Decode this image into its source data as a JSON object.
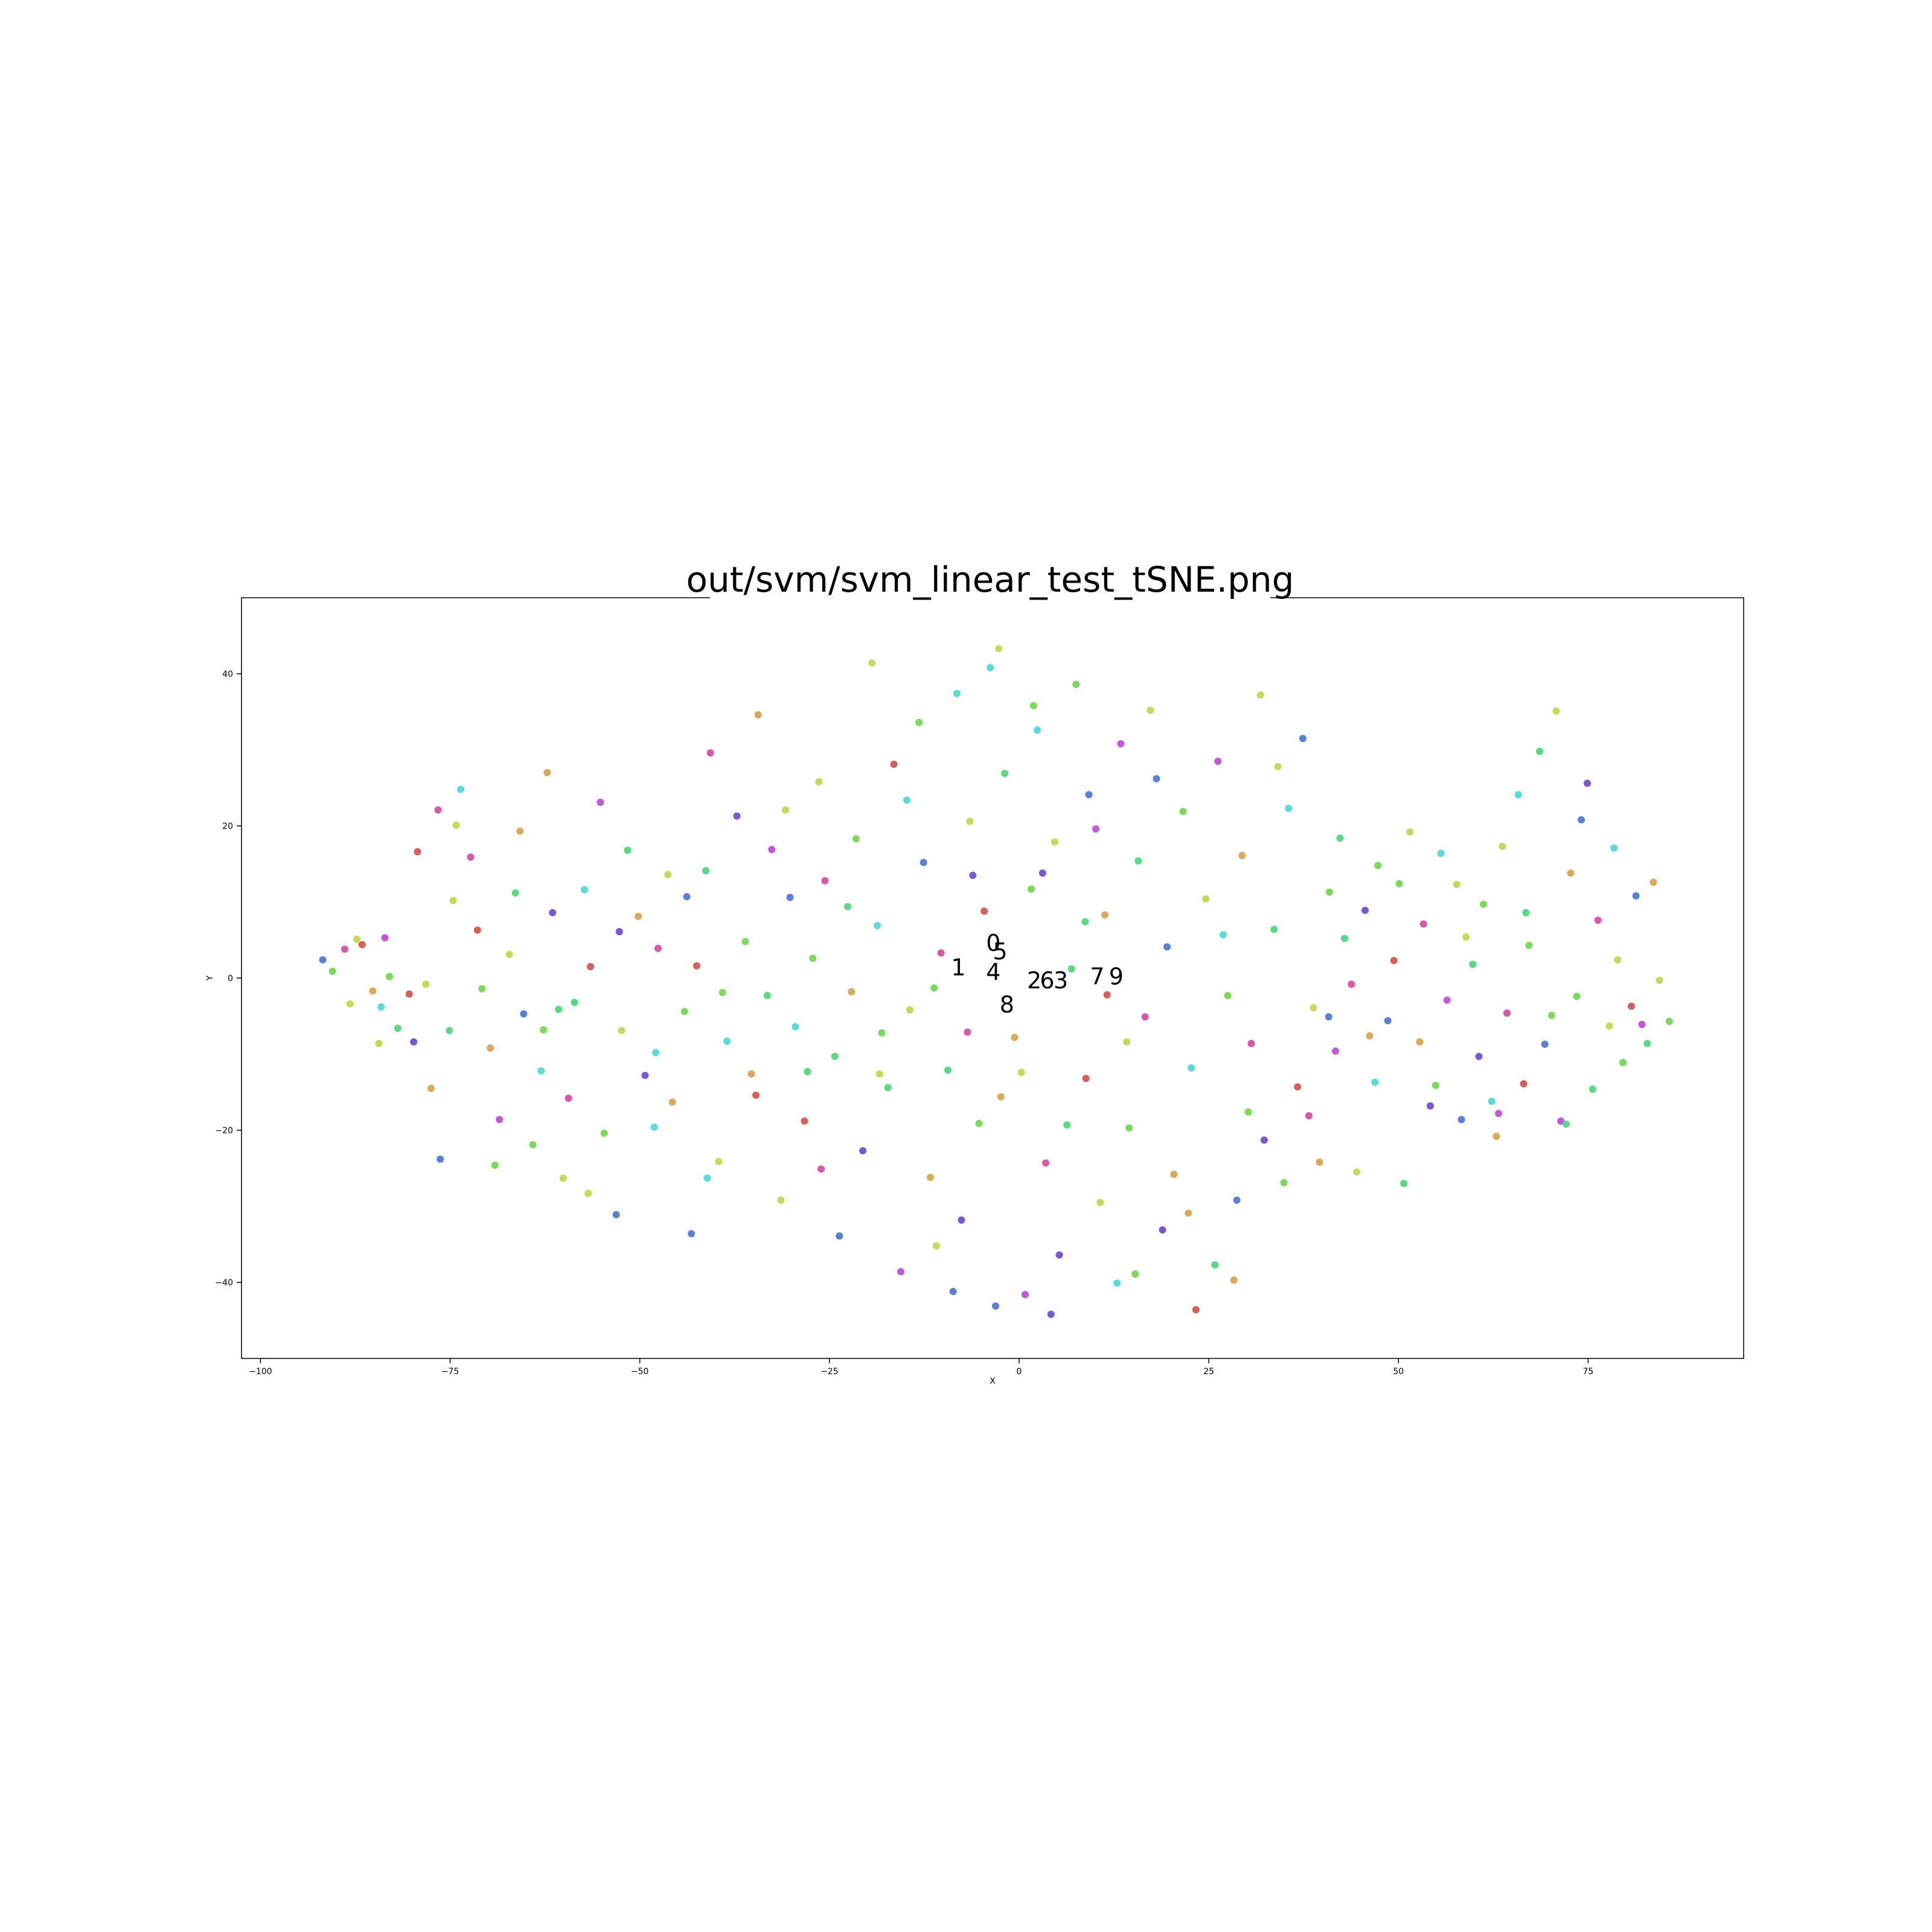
{
  "chart_data": {
    "type": "scatter",
    "title": "out/svm/svm_linear_test_tSNE.png",
    "xlabel": "X",
    "ylabel": "Y",
    "xlim": [
      -102.5,
      95.5
    ],
    "ylim": [
      -50,
      50
    ],
    "xticks": [
      -100,
      -75,
      -50,
      -25,
      0,
      25,
      50,
      75
    ],
    "xtick_labels": [
      "−100",
      "−75",
      "−50",
      "−25",
      "0",
      "25",
      "50",
      "75"
    ],
    "yticks": [
      -40,
      -20,
      0,
      20,
      40
    ],
    "ytick_labels": [
      "−40",
      "−20",
      "0",
      "20",
      "40"
    ],
    "grid": false,
    "legend": "none",
    "class_colors": [
      "#db5f57",
      "#dba957",
      "#c3db57",
      "#79db57",
      "#57db80",
      "#57dbdb",
      "#5780db",
      "#7957db",
      "#c357db",
      "#db57a9"
    ],
    "cluster_labels": [
      {
        "text": "0",
        "x": -3.4,
        "y": 4.4
      },
      {
        "text": "5",
        "x": -2.5,
        "y": 3.3
      },
      {
        "text": "1",
        "x": -8.0,
        "y": 1.2
      },
      {
        "text": "4",
        "x": -3.4,
        "y": 0.6
      },
      {
        "text": "2",
        "x": 2.0,
        "y": -0.5
      },
      {
        "text": "6",
        "x": 3.7,
        "y": -0.5
      },
      {
        "text": "3",
        "x": 5.5,
        "y": -0.5
      },
      {
        "text": "7",
        "x": 10.3,
        "y": 0.0
      },
      {
        "text": "9",
        "x": 12.8,
        "y": 0.0
      },
      {
        "text": "8",
        "x": -1.6,
        "y": -3.7
      }
    ],
    "points": [
      [
        -91.8,
        2.4,
        6
      ],
      [
        -90.5,
        0.9,
        3
      ],
      [
        -88.9,
        3.8,
        9
      ],
      [
        -87.3,
        5.1,
        2
      ],
      [
        -86.6,
        4.4,
        0
      ],
      [
        -85.2,
        -1.7,
        1
      ],
      [
        -84.1,
        -3.8,
        5
      ],
      [
        -83.0,
        0.2,
        3
      ],
      [
        -81.9,
        -6.6,
        4
      ],
      [
        -80.4,
        -2.1,
        0
      ],
      [
        -79.8,
        -8.4,
        7
      ],
      [
        -78.2,
        -0.8,
        2
      ],
      [
        -77.5,
        -14.5,
        1
      ],
      [
        -76.3,
        -23.8,
        6
      ],
      [
        -75.1,
        -6.9,
        4
      ],
      [
        -74.2,
        20.1,
        2
      ],
      [
        -73.6,
        24.8,
        5
      ],
      [
        -72.3,
        15.9,
        9
      ],
      [
        -71.4,
        6.3,
        0
      ],
      [
        -70.8,
        -1.4,
        3
      ],
      [
        -69.7,
        -9.2,
        1
      ],
      [
        -68.5,
        -18.6,
        8
      ],
      [
        -67.2,
        3.1,
        2
      ],
      [
        -66.4,
        11.2,
        4
      ],
      [
        -65.3,
        -4.7,
        6
      ],
      [
        -64.1,
        -21.9,
        3
      ],
      [
        -63.0,
        -12.2,
        5
      ],
      [
        -62.2,
        27.0,
        1
      ],
      [
        -61.5,
        8.6,
        7
      ],
      [
        -60.1,
        -26.3,
        2
      ],
      [
        -59.4,
        -15.8,
        9
      ],
      [
        -58.6,
        -3.2,
        4
      ],
      [
        -57.3,
        11.6,
        5
      ],
      [
        -56.5,
        1.5,
        0
      ],
      [
        -55.2,
        23.1,
        8
      ],
      [
        -54.7,
        -20.4,
        3
      ],
      [
        -53.1,
        -31.1,
        6
      ],
      [
        -52.4,
        -6.9,
        2
      ],
      [
        -51.6,
        16.8,
        4
      ],
      [
        -50.2,
        8.1,
        1
      ],
      [
        -49.3,
        -12.8,
        7
      ],
      [
        -48.1,
        -19.6,
        5
      ],
      [
        -47.6,
        3.9,
        9
      ],
      [
        -46.3,
        13.6,
        2
      ],
      [
        -45.7,
        -16.3,
        1
      ],
      [
        -44.1,
        -4.4,
        3
      ],
      [
        -43.2,
        -33.6,
        6
      ],
      [
        -42.5,
        1.6,
        0
      ],
      [
        -41.3,
        14.1,
        4
      ],
      [
        -40.7,
        29.6,
        9
      ],
      [
        -39.6,
        -24.1,
        2
      ],
      [
        -38.5,
        -8.3,
        5
      ],
      [
        -37.2,
        21.3,
        7
      ],
      [
        -36.1,
        4.8,
        3
      ],
      [
        -35.3,
        -12.6,
        1
      ],
      [
        -34.4,
        34.6,
        1
      ],
      [
        -33.2,
        -2.3,
        4
      ],
      [
        -32.6,
        16.9,
        8
      ],
      [
        -31.4,
        -29.2,
        2
      ],
      [
        -30.2,
        10.6,
        6
      ],
      [
        -29.5,
        -6.4,
        5
      ],
      [
        -28.3,
        -18.8,
        0
      ],
      [
        -27.2,
        2.6,
        3
      ],
      [
        -26.4,
        25.8,
        2
      ],
      [
        -25.6,
        12.8,
        9
      ],
      [
        -24.3,
        -10.3,
        4
      ],
      [
        -23.7,
        -33.9,
        6
      ],
      [
        -22.1,
        -1.8,
        1
      ],
      [
        -21.5,
        18.3,
        3
      ],
      [
        -20.6,
        -22.7,
        7
      ],
      [
        -19.4,
        41.4,
        2
      ],
      [
        -18.7,
        6.9,
        5
      ],
      [
        -17.3,
        -14.4,
        4
      ],
      [
        -16.5,
        28.1,
        0
      ],
      [
        -15.6,
        -38.6,
        8
      ],
      [
        -14.4,
        -4.2,
        2
      ],
      [
        -13.2,
        33.6,
        3
      ],
      [
        -12.6,
        15.2,
        6
      ],
      [
        -11.7,
        -26.2,
        1
      ],
      [
        -10.3,
        3.3,
        9
      ],
      [
        -9.4,
        -12.1,
        4
      ],
      [
        -8.2,
        37.4,
        5
      ],
      [
        -7.6,
        -31.8,
        7
      ],
      [
        -6.5,
        20.6,
        2
      ],
      [
        -5.3,
        -19.1,
        3
      ],
      [
        -4.6,
        8.8,
        0
      ],
      [
        -3.1,
        -43.1,
        6
      ],
      [
        -2.7,
        43.3,
        2
      ],
      [
        -1.9,
        26.9,
        4
      ],
      [
        -0.6,
        -7.8,
        1
      ],
      [
        0.8,
        -41.6,
        8
      ],
      [
        1.6,
        11.7,
        3
      ],
      [
        2.4,
        32.6,
        5
      ],
      [
        3.5,
        -24.3,
        9
      ],
      [
        4.7,
        17.9,
        2
      ],
      [
        5.3,
        -36.4,
        7
      ],
      [
        6.9,
        1.2,
        4
      ],
      [
        7.5,
        38.6,
        3
      ],
      [
        8.8,
        -13.2,
        0
      ],
      [
        9.2,
        24.1,
        6
      ],
      [
        10.7,
        -29.5,
        2
      ],
      [
        11.3,
        8.3,
        1
      ],
      [
        12.9,
        -40.1,
        5
      ],
      [
        13.4,
        30.8,
        8
      ],
      [
        14.5,
        -19.7,
        3
      ],
      [
        15.7,
        15.4,
        4
      ],
      [
        16.6,
        -5.1,
        9
      ],
      [
        17.3,
        35.2,
        2
      ],
      [
        18.9,
        -33.1,
        7
      ],
      [
        19.5,
        4.1,
        6
      ],
      [
        20.4,
        -25.8,
        1
      ],
      [
        21.6,
        21.9,
        3
      ],
      [
        22.7,
        -11.8,
        5
      ],
      [
        23.3,
        -43.6,
        0
      ],
      [
        24.6,
        10.4,
        2
      ],
      [
        25.8,
        -37.7,
        4
      ],
      [
        26.2,
        28.5,
        8
      ],
      [
        27.5,
        -2.3,
        3
      ],
      [
        28.7,
        -29.2,
        6
      ],
      [
        29.4,
        16.1,
        1
      ],
      [
        30.6,
        -8.6,
        9
      ],
      [
        31.8,
        37.2,
        2
      ],
      [
        32.3,
        -21.3,
        7
      ],
      [
        33.6,
        6.4,
        4
      ],
      [
        34.9,
        -26.9,
        3
      ],
      [
        35.5,
        22.3,
        5
      ],
      [
        36.7,
        -14.3,
        0
      ],
      [
        37.4,
        31.5,
        6
      ],
      [
        38.8,
        -3.9,
        2
      ],
      [
        39.6,
        -24.2,
        1
      ],
      [
        40.9,
        11.3,
        3
      ],
      [
        41.7,
        -9.6,
        8
      ],
      [
        42.3,
        18.4,
        4
      ],
      [
        43.8,
        -0.8,
        9
      ],
      [
        44.5,
        -25.5,
        2
      ],
      [
        45.6,
        8.9,
        7
      ],
      [
        46.9,
        -13.7,
        5
      ],
      [
        47.3,
        14.8,
        3
      ],
      [
        48.6,
        -5.6,
        6
      ],
      [
        49.4,
        2.3,
        0
      ],
      [
        50.7,
        -27.0,
        4
      ],
      [
        51.5,
        19.2,
        2
      ],
      [
        52.8,
        -8.4,
        1
      ],
      [
        53.3,
        7.1,
        9
      ],
      [
        54.9,
        -14.1,
        3
      ],
      [
        55.6,
        16.4,
        5
      ],
      [
        56.4,
        -2.9,
        8
      ],
      [
        57.7,
        12.3,
        2
      ],
      [
        58.3,
        -18.6,
        6
      ],
      [
        59.8,
        1.8,
        4
      ],
      [
        60.6,
        -10.3,
        7
      ],
      [
        61.2,
        9.7,
        3
      ],
      [
        62.9,
        -20.8,
        1
      ],
      [
        63.7,
        17.3,
        2
      ],
      [
        64.3,
        -4.6,
        9
      ],
      [
        65.8,
        24.1,
        5
      ],
      [
        66.5,
        -13.9,
        0
      ],
      [
        67.2,
        4.3,
        3
      ],
      [
        68.6,
        29.8,
        4
      ],
      [
        69.3,
        -8.7,
        6
      ],
      [
        70.8,
        35.1,
        2
      ],
      [
        71.4,
        -18.8,
        8
      ],
      [
        72.7,
        13.8,
        1
      ],
      [
        73.5,
        -2.4,
        3
      ],
      [
        74.9,
        25.6,
        7
      ],
      [
        75.6,
        -14.6,
        4
      ],
      [
        76.3,
        7.6,
        9
      ],
      [
        77.8,
        -6.3,
        2
      ],
      [
        78.4,
        17.1,
        5
      ],
      [
        79.6,
        -11.1,
        3
      ],
      [
        80.7,
        -3.7,
        0
      ],
      [
        81.3,
        10.8,
        6
      ],
      [
        82.8,
        -8.6,
        4
      ],
      [
        83.6,
        12.6,
        1
      ],
      [
        84.4,
        -0.3,
        2
      ],
      [
        85.7,
        -5.7,
        3
      ],
      [
        -88.2,
        -3.4,
        2
      ],
      [
        -83.6,
        5.3,
        8
      ],
      [
        -79.3,
        16.6,
        0
      ],
      [
        -74.6,
        10.2,
        2
      ],
      [
        -69.1,
        -24.6,
        3
      ],
      [
        -65.8,
        19.3,
        1
      ],
      [
        -60.7,
        -4.1,
        4
      ],
      [
        -56.8,
        -28.3,
        2
      ],
      [
        -52.7,
        6.1,
        7
      ],
      [
        -47.9,
        -9.8,
        5
      ],
      [
        -43.8,
        10.7,
        6
      ],
      [
        -39.1,
        -1.9,
        3
      ],
      [
        -34.7,
        -15.4,
        0
      ],
      [
        -30.8,
        22.1,
        2
      ],
      [
        -26.1,
        -25.1,
        9
      ],
      [
        -22.6,
        9.4,
        4
      ],
      [
        -18.1,
        -7.2,
        3
      ],
      [
        -14.8,
        23.4,
        5
      ],
      [
        -10.9,
        -35.2,
        2
      ],
      [
        -6.1,
        13.5,
        7
      ],
      [
        -2.4,
        -15.6,
        1
      ],
      [
        1.9,
        35.8,
        3
      ],
      [
        6.3,
        -19.3,
        4
      ],
      [
        10.1,
        19.6,
        8
      ],
      [
        14.2,
        -8.4,
        2
      ],
      [
        18.1,
        26.2,
        6
      ],
      [
        22.3,
        -30.9,
        1
      ],
      [
        26.9,
        5.7,
        5
      ],
      [
        30.2,
        -17.6,
        3
      ],
      [
        34.1,
        27.8,
        2
      ],
      [
        38.2,
        -18.1,
        9
      ],
      [
        42.9,
        5.2,
        4
      ],
      [
        46.2,
        -7.6,
        1
      ],
      [
        50.1,
        12.4,
        3
      ],
      [
        54.2,
        -16.8,
        7
      ],
      [
        58.9,
        5.4,
        2
      ],
      [
        62.3,
        -16.2,
        5
      ],
      [
        66.8,
        8.6,
        4
      ],
      [
        70.2,
        -4.9,
        3
      ],
      [
        74.1,
        20.8,
        6
      ],
      [
        78.9,
        2.4,
        2
      ],
      [
        82.1,
        -6.1,
        8
      ],
      [
        -3.8,
        40.8,
        5
      ],
      [
        -8.7,
        -41.2,
        6
      ],
      [
        4.2,
        -44.2,
        7
      ],
      [
        -18.4,
        -12.6,
        2
      ],
      [
        15.3,
        -38.9,
        3
      ],
      [
        -27.9,
        -12.3,
        4
      ],
      [
        28.3,
        -39.7,
        1
      ],
      [
        -41.1,
        -26.3,
        5
      ],
      [
        40.8,
        -5.1,
        6
      ],
      [
        -62.7,
        -6.8,
        3
      ],
      [
        63.2,
        -17.8,
        8
      ],
      [
        -76.6,
        22.1,
        9
      ],
      [
        72.1,
        -19.2,
        4
      ],
      [
        -84.4,
        -8.6,
        2
      ],
      [
        11.6,
        -2.2,
        0
      ],
      [
        -11.2,
        -1.3,
        3
      ],
      [
        8.7,
        7.4,
        4
      ],
      [
        -6.8,
        -7.1,
        9
      ],
      [
        0.3,
        -12.4,
        2
      ],
      [
        3.1,
        13.8,
        7
      ]
    ]
  }
}
